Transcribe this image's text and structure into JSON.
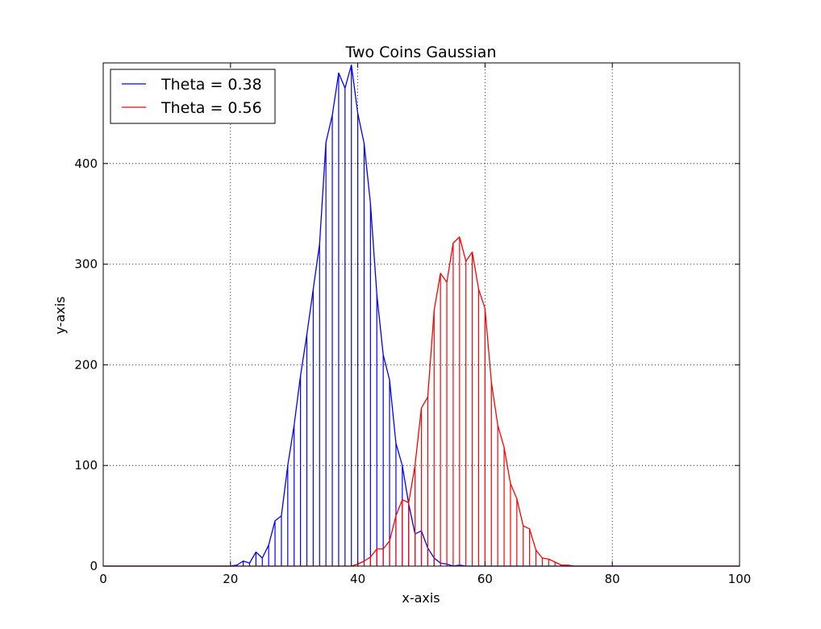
{
  "chart_data": {
    "type": "line",
    "title": "Two Coins Gaussian",
    "xlabel": "x-axis",
    "ylabel": "y-axis",
    "xlim": [
      0,
      100
    ],
    "ylim": [
      0,
      500
    ],
    "xticks": [
      "0",
      "20",
      "40",
      "60",
      "80",
      "100"
    ],
    "yticks": [
      "0",
      "100",
      "200",
      "300",
      "400"
    ],
    "grid": true,
    "legend_position": "top-left",
    "x": [
      0,
      1,
      2,
      3,
      4,
      5,
      6,
      7,
      8,
      9,
      10,
      11,
      12,
      13,
      14,
      15,
      16,
      17,
      18,
      19,
      20,
      21,
      22,
      23,
      24,
      25,
      26,
      27,
      28,
      29,
      30,
      31,
      32,
      33,
      34,
      35,
      36,
      37,
      38,
      39,
      40,
      41,
      42,
      43,
      44,
      45,
      46,
      47,
      48,
      49,
      50,
      51,
      52,
      53,
      54,
      55,
      56,
      57,
      58,
      59,
      60,
      61,
      62,
      63,
      64,
      65,
      66,
      67,
      68,
      69,
      70,
      71,
      72,
      73,
      74,
      75,
      76,
      77,
      78,
      79,
      80,
      81,
      82,
      83,
      84,
      85,
      86,
      87,
      88,
      89,
      90,
      91,
      92,
      93,
      94,
      95,
      96,
      97,
      98,
      99,
      100
    ],
    "series": [
      {
        "name": "Theta = 0.38",
        "color": "#0000ff",
        "values": [
          0,
          0,
          0,
          0,
          0,
          0,
          0,
          0,
          0,
          0,
          0,
          0,
          0,
          0,
          0,
          0,
          0,
          0,
          0,
          0,
          0,
          1,
          5,
          3,
          14,
          8,
          21,
          45,
          50,
          100,
          140,
          189,
          230,
          275,
          320,
          421,
          448,
          490,
          475,
          498,
          450,
          420,
          360,
          270,
          210,
          185,
          122,
          100,
          62,
          32,
          35,
          18,
          8,
          3,
          2,
          0,
          1,
          0,
          0,
          0,
          0,
          0,
          0,
          0,
          0,
          0,
          0,
          0,
          0,
          0,
          0,
          0,
          0,
          0,
          0,
          0,
          0,
          0,
          0,
          0,
          0,
          0,
          0,
          0,
          0,
          0,
          0,
          0,
          0,
          0,
          0,
          0,
          0,
          0,
          0,
          0,
          0,
          0,
          0,
          0,
          0
        ]
      },
      {
        "name": "Theta = 0.56",
        "color": "#ff0000",
        "values": [
          0,
          0,
          0,
          0,
          0,
          0,
          0,
          0,
          0,
          0,
          0,
          0,
          0,
          0,
          0,
          0,
          0,
          0,
          0,
          0,
          0,
          0,
          0,
          0,
          0,
          0,
          0,
          0,
          0,
          0,
          0,
          0,
          0,
          0,
          0,
          0,
          0,
          0,
          0,
          0,
          2,
          5,
          9,
          17,
          17,
          25,
          50,
          66,
          63,
          100,
          157,
          168,
          254,
          291,
          282,
          321,
          327,
          303,
          312,
          275,
          256,
          183,
          140,
          118,
          82,
          67,
          40,
          37,
          16,
          8,
          7,
          4,
          1,
          1,
          0,
          0,
          0,
          0,
          0,
          0,
          0,
          0,
          0,
          0,
          0,
          0,
          0,
          0,
          0,
          0,
          0,
          0,
          0,
          0,
          0,
          0,
          0,
          0,
          0,
          0,
          0
        ]
      }
    ]
  }
}
